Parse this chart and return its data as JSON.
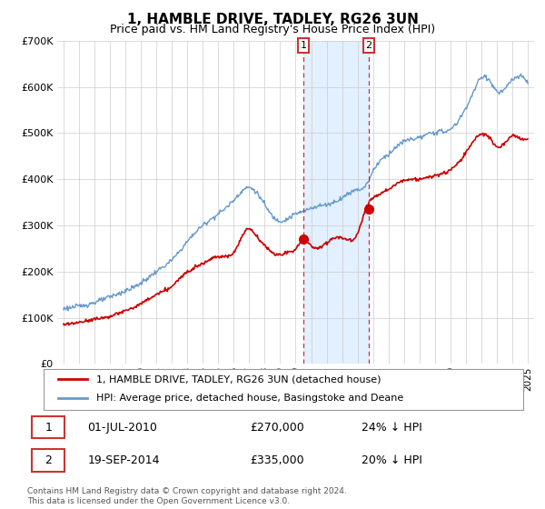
{
  "title": "1, HAMBLE DRIVE, TADLEY, RG26 3UN",
  "subtitle": "Price paid vs. HM Land Registry's House Price Index (HPI)",
  "ylim": [
    0,
    700000
  ],
  "yticks": [
    0,
    100000,
    200000,
    300000,
    400000,
    500000,
    600000,
    700000
  ],
  "ytick_labels": [
    "£0",
    "£100K",
    "£200K",
    "£300K",
    "£400K",
    "£500K",
    "£600K",
    "£700K"
  ],
  "hpi_color": "#6699cc",
  "price_color": "#cc0000",
  "annotation_color": "#cc3333",
  "shade_color": "#ddeeff",
  "legend1": "1, HAMBLE DRIVE, TADLEY, RG26 3UN (detached house)",
  "legend2": "HPI: Average price, detached house, Basingstoke and Deane",
  "transaction1_label": "1",
  "transaction1_date": "01-JUL-2010",
  "transaction1_price": "£270,000",
  "transaction1_hpi": "24% ↓ HPI",
  "transaction2_label": "2",
  "transaction2_date": "19-SEP-2014",
  "transaction2_price": "£335,000",
  "transaction2_hpi": "20% ↓ HPI",
  "footer": "Contains HM Land Registry data © Crown copyright and database right 2024.\nThis data is licensed under the Open Government Licence v3.0.",
  "transaction1_year": 2010.5,
  "transaction2_year": 2014.72,
  "transaction1_price_val": 270000,
  "transaction2_price_val": 335000
}
